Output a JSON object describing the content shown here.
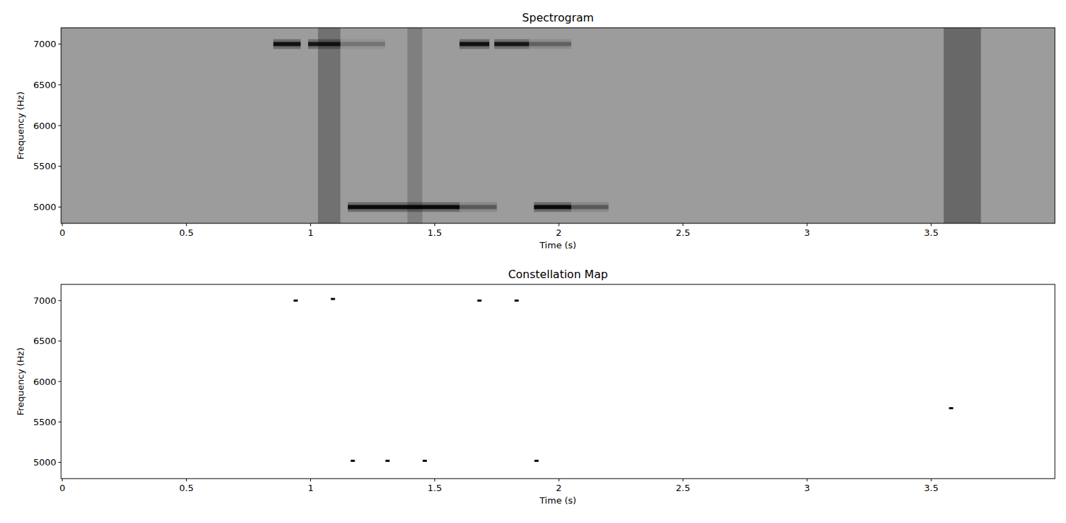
{
  "chart_data": [
    {
      "type": "spectrogram",
      "title": "Spectrogram",
      "x_label": "Time (s)",
      "y_label": "Frequency (Hz)",
      "xlim": [
        -0.005,
        3.998
      ],
      "ylim": [
        4800,
        7200
      ],
      "xticks": [
        0,
        0.5,
        1,
        1.5,
        2,
        2.5,
        3,
        3.5
      ],
      "yticks": [
        5000,
        5500,
        6000,
        6500,
        7000
      ],
      "color": "#000000",
      "tones": [
        {
          "start": 0.85,
          "end": 0.96,
          "frequency": 7000,
          "intensity": 0.85
        },
        {
          "start": 0.99,
          "end": 1.12,
          "frequency": 7000,
          "intensity": 0.8
        },
        {
          "start": 1.12,
          "end": 1.3,
          "frequency": 7000,
          "intensity": 0.2
        },
        {
          "start": 1.6,
          "end": 1.72,
          "frequency": 7000,
          "intensity": 0.85
        },
        {
          "start": 1.74,
          "end": 1.88,
          "frequency": 7000,
          "intensity": 0.8
        },
        {
          "start": 1.88,
          "end": 2.05,
          "frequency": 7000,
          "intensity": 0.3
        },
        {
          "start": 1.15,
          "end": 1.6,
          "frequency": 5000,
          "intensity": 0.9
        },
        {
          "start": 1.6,
          "end": 1.75,
          "frequency": 5000,
          "intensity": 0.35
        },
        {
          "start": 1.9,
          "end": 2.05,
          "frequency": 5000,
          "intensity": 0.9
        },
        {
          "start": 2.05,
          "end": 2.2,
          "frequency": 5000,
          "intensity": 0.35
        }
      ],
      "bursts": [
        {
          "start": 1.03,
          "end": 1.12,
          "intensity": 0.45
        },
        {
          "start": 1.39,
          "end": 1.45,
          "intensity": 0.3
        },
        {
          "start": 3.55,
          "end": 3.7,
          "intensity": 0.55
        }
      ]
    },
    {
      "type": "scatter",
      "title": "Constellation Map",
      "x_label": "Time (s)",
      "y_label": "Frequency (Hz)",
      "xlim": [
        -0.005,
        3.998
      ],
      "ylim": [
        4800,
        7200
      ],
      "xticks": [
        0,
        0.5,
        1,
        1.5,
        2,
        2.5,
        3,
        3.5
      ],
      "yticks": [
        5000,
        5500,
        6000,
        6500,
        7000
      ],
      "color": "#000000",
      "marker": "square",
      "x": [
        0.94,
        1.09,
        1.68,
        1.83,
        1.17,
        1.31,
        1.46,
        1.91,
        3.58
      ],
      "values": [
        7000,
        7020,
        7000,
        7000,
        5020,
        5020,
        5020,
        5020,
        5670
      ]
    }
  ]
}
